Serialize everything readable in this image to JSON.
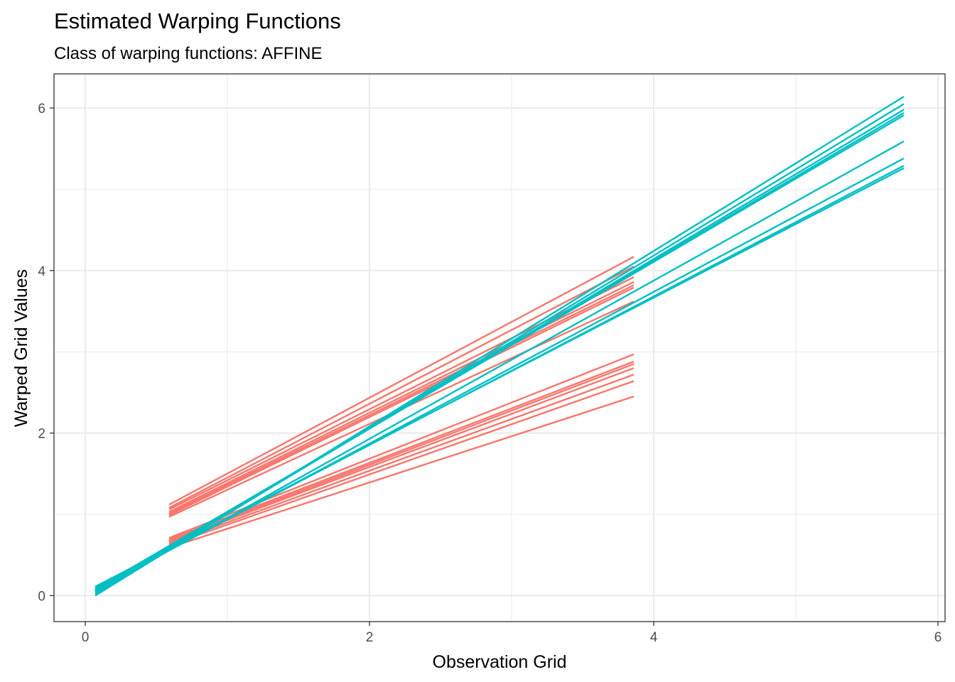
{
  "chart_data": {
    "type": "line",
    "title": "Estimated Warping Functions",
    "subtitle": "Class of warping functions: AFFINE",
    "xlabel": "Observation Grid",
    "ylabel": "Warped Grid Values",
    "xlim": [
      -0.22,
      6.05
    ],
    "ylim": [
      -0.32,
      6.42
    ],
    "x_ticks": [
      0,
      2,
      4,
      6
    ],
    "y_ticks": [
      0,
      2,
      4,
      6
    ],
    "grid": true,
    "legend": "none",
    "colors": {
      "red": "#F8766D",
      "teal": "#00BFC4"
    },
    "series": [
      {
        "color": "red",
        "x": [
          0.59,
          3.86
        ],
        "y": [
          1.12,
          4.17
        ]
      },
      {
        "color": "red",
        "x": [
          0.59,
          3.86
        ],
        "y": [
          1.08,
          4.05
        ]
      },
      {
        "color": "red",
        "x": [
          0.59,
          3.86
        ],
        "y": [
          1.06,
          3.92
        ]
      },
      {
        "color": "red",
        "x": [
          0.59,
          3.86
        ],
        "y": [
          1.03,
          3.86
        ]
      },
      {
        "color": "red",
        "x": [
          0.59,
          3.86
        ],
        "y": [
          1.01,
          3.82
        ]
      },
      {
        "color": "red",
        "x": [
          0.59,
          3.86
        ],
        "y": [
          0.99,
          3.79
        ]
      },
      {
        "color": "red",
        "x": [
          0.59,
          3.86
        ],
        "y": [
          0.97,
          3.62
        ]
      },
      {
        "color": "red",
        "x": [
          0.59,
          3.86
        ],
        "y": [
          0.71,
          2.97
        ]
      },
      {
        "color": "red",
        "x": [
          0.59,
          3.86
        ],
        "y": [
          0.69,
          2.88
        ]
      },
      {
        "color": "red",
        "x": [
          0.59,
          3.86
        ],
        "y": [
          0.67,
          2.85
        ]
      },
      {
        "color": "red",
        "x": [
          0.59,
          3.86
        ],
        "y": [
          0.66,
          2.8
        ]
      },
      {
        "color": "red",
        "x": [
          0.59,
          3.86
        ],
        "y": [
          0.64,
          2.72
        ]
      },
      {
        "color": "red",
        "x": [
          0.59,
          3.86
        ],
        "y": [
          0.62,
          2.64
        ]
      },
      {
        "color": "red",
        "x": [
          0.59,
          3.86
        ],
        "y": [
          0.59,
          2.45
        ]
      },
      {
        "color": "teal",
        "x": [
          0.07,
          5.76
        ],
        "y": [
          0.0,
          6.14
        ]
      },
      {
        "color": "teal",
        "x": [
          0.07,
          5.76
        ],
        "y": [
          0.02,
          6.05
        ]
      },
      {
        "color": "teal",
        "x": [
          0.07,
          5.76
        ],
        "y": [
          0.04,
          5.98
        ]
      },
      {
        "color": "teal",
        "x": [
          0.07,
          5.76
        ],
        "y": [
          0.06,
          5.94
        ]
      },
      {
        "color": "teal",
        "x": [
          0.07,
          5.76
        ],
        "y": [
          0.08,
          5.91
        ]
      },
      {
        "color": "teal",
        "x": [
          0.07,
          5.76
        ],
        "y": [
          0.05,
          5.59
        ]
      },
      {
        "color": "teal",
        "x": [
          0.07,
          5.76
        ],
        "y": [
          0.07,
          5.38
        ]
      },
      {
        "color": "teal",
        "x": [
          0.07,
          5.76
        ],
        "y": [
          0.09,
          5.29
        ]
      },
      {
        "color": "teal",
        "x": [
          0.07,
          5.76
        ],
        "y": [
          0.11,
          5.26
        ]
      }
    ]
  }
}
